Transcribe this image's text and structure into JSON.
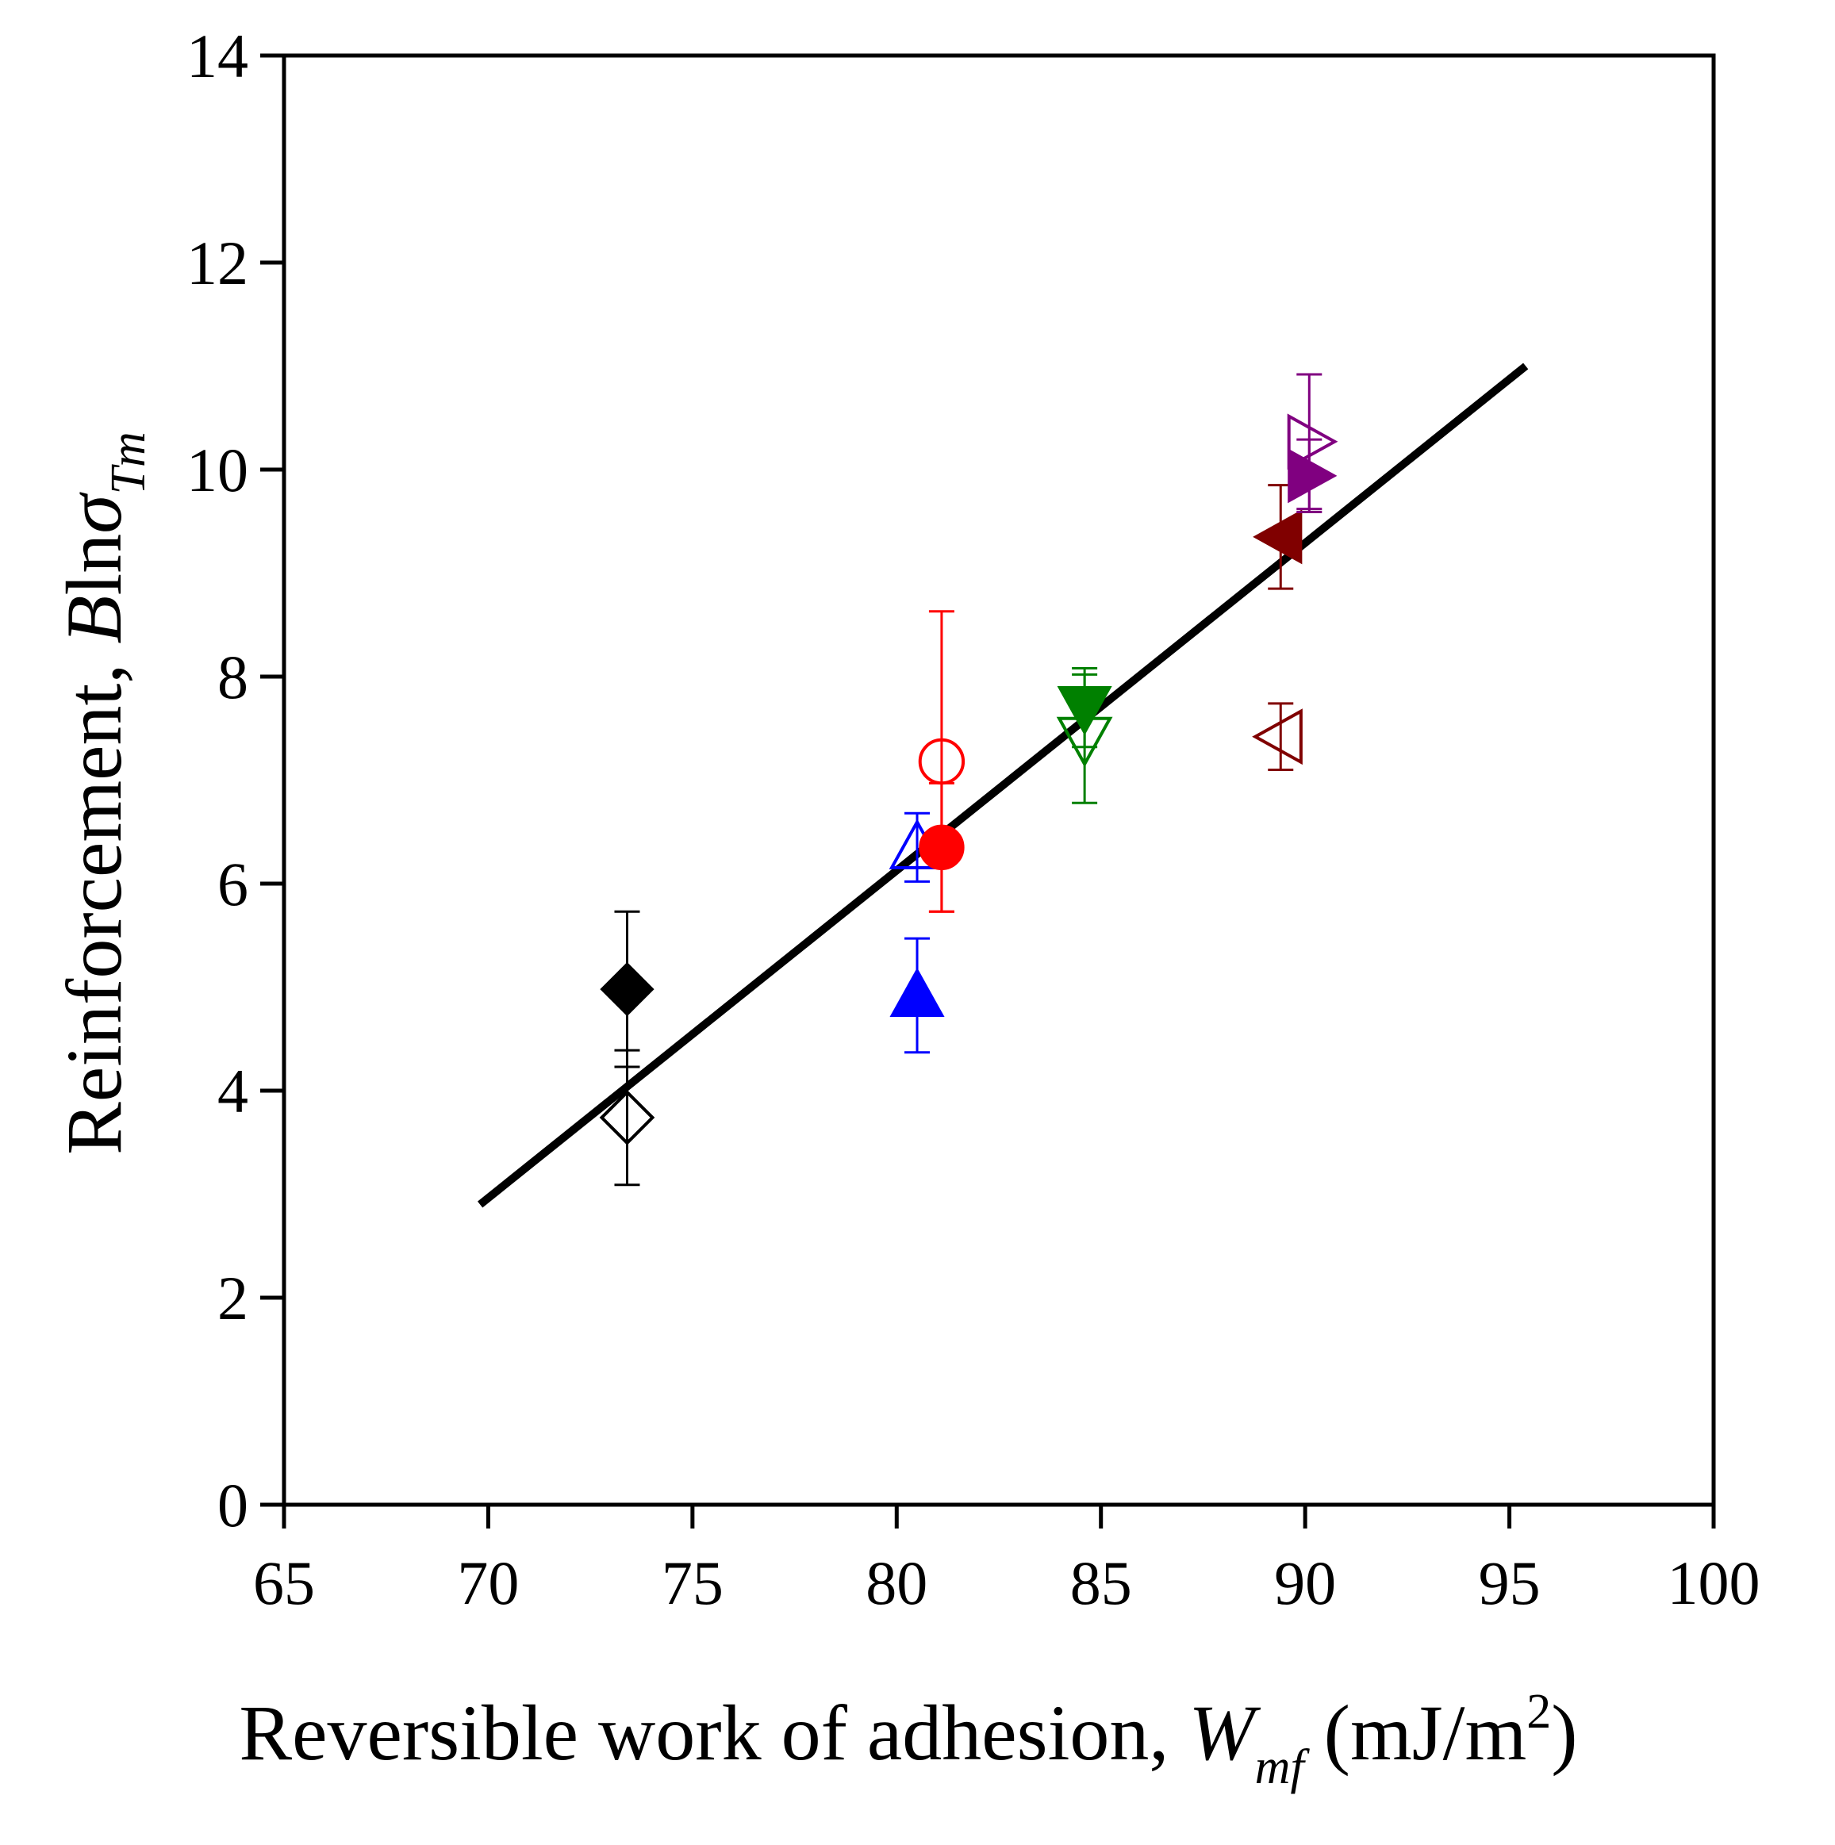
{
  "chart_data": {
    "type": "scatter",
    "xlabel": {
      "prefix": "Reversible work of adhesion, ",
      "var": "W",
      "sub": "mf",
      "unit_open": " (mJ/m",
      "unit_sup": "2",
      "unit_close": ")"
    },
    "ylabel": {
      "prefix": "Reinforcement, ",
      "var": "B",
      "ln": "ln",
      "sigma": "σ",
      "sub": "Tm"
    },
    "xlim": [
      65,
      100
    ],
    "ylim": [
      0,
      14
    ],
    "xticks": [
      "65",
      "70",
      "75",
      "80",
      "85",
      "90",
      "95",
      "100"
    ],
    "yticks": [
      "0",
      "2",
      "4",
      "6",
      "8",
      "10",
      "12",
      "14"
    ],
    "grid": false,
    "series": [
      {
        "name": "black filled diamond",
        "marker": "diamond",
        "filled": true,
        "color": "#000000",
        "x": 73.4,
        "y": 4.98,
        "err": 0.75
      },
      {
        "name": "black open diamond",
        "marker": "diamond",
        "filled": false,
        "color": "#000000",
        "x": 73.4,
        "y": 3.74,
        "err": 0.65
      },
      {
        "name": "blue filled triangle",
        "marker": "triangle-up",
        "filled": true,
        "color": "#0000ff",
        "x": 80.5,
        "y": 4.92,
        "err": 0.55
      },
      {
        "name": "blue open triangle",
        "marker": "triangle-up",
        "filled": false,
        "color": "#0000ff",
        "x": 80.5,
        "y": 6.35,
        "err": 0.33
      },
      {
        "name": "red filled circle",
        "marker": "circle",
        "filled": true,
        "color": "#ff0000",
        "x": 81.1,
        "y": 6.35,
        "err": 0.62
      },
      {
        "name": "red open circle",
        "marker": "circle",
        "filled": false,
        "color": "#ff0000",
        "x": 81.1,
        "y": 7.18,
        "err": 1.45
      },
      {
        "name": "green filled triangle down",
        "marker": "triangle-down",
        "filled": true,
        "color": "#008000",
        "x": 84.6,
        "y": 7.7,
        "err": 0.38
      },
      {
        "name": "green open triangle down",
        "marker": "triangle-down",
        "filled": false,
        "color": "#008000",
        "x": 84.6,
        "y": 7.4,
        "err": 0.62
      },
      {
        "name": "maroon filled triangle left",
        "marker": "triangle-left",
        "filled": true,
        "color": "#800000",
        "x": 89.4,
        "y": 9.35,
        "err": 0.5
      },
      {
        "name": "maroon open triangle left",
        "marker": "triangle-left",
        "filled": false,
        "color": "#800000",
        "x": 89.4,
        "y": 7.42,
        "err": 0.32
      },
      {
        "name": "purple filled triangle right",
        "marker": "triangle-right",
        "filled": true,
        "color": "#800080",
        "x": 90.1,
        "y": 9.94,
        "err": 0.35
      },
      {
        "name": "purple open triangle right",
        "marker": "triangle-right",
        "filled": false,
        "color": "#800080",
        "x": 90.1,
        "y": 10.27,
        "err": 0.65
      }
    ],
    "fit_line": {
      "x": [
        69.8,
        95.4
      ],
      "y": [
        2.9,
        11.0
      ],
      "color": "#000000"
    }
  }
}
